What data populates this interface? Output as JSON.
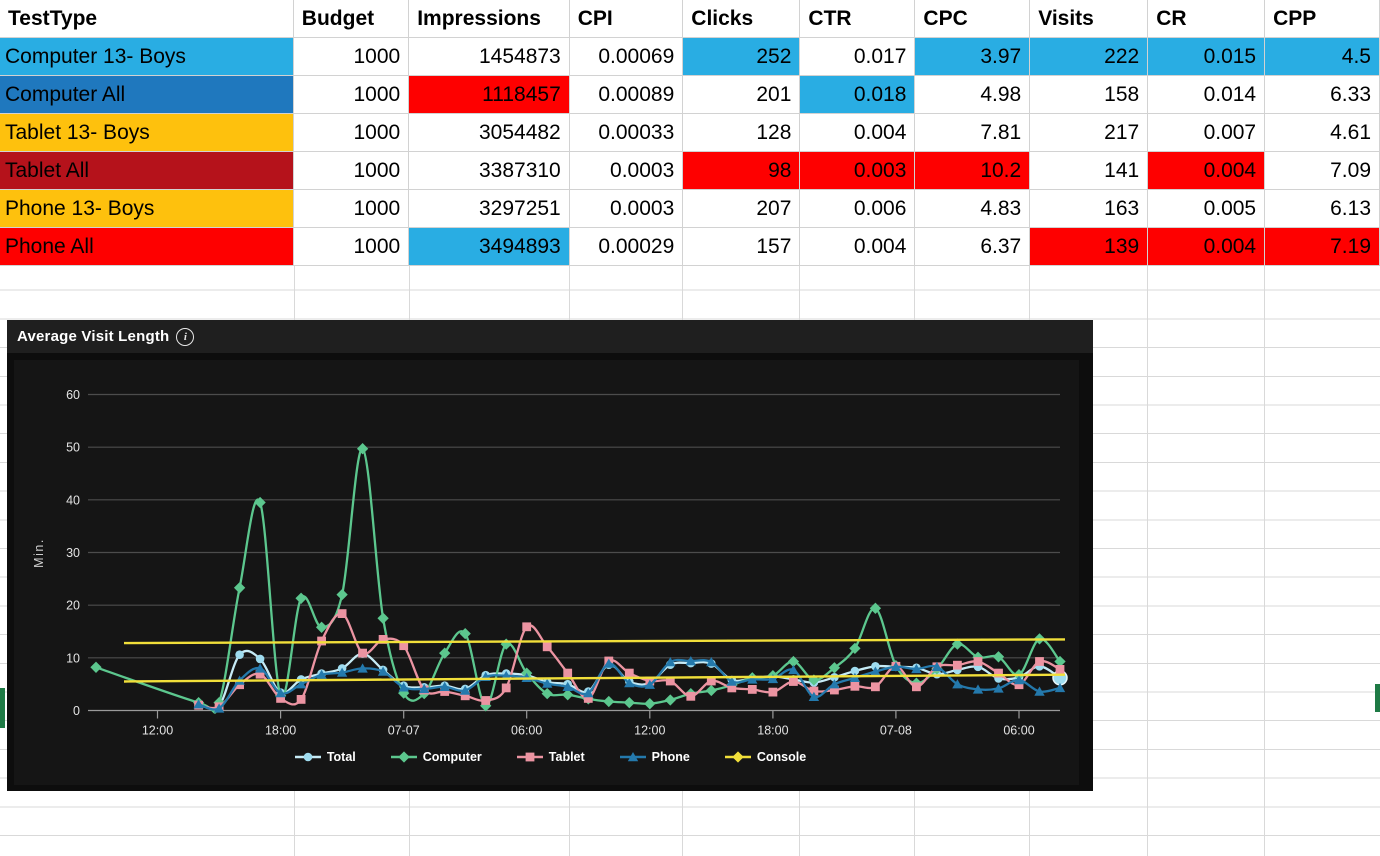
{
  "table": {
    "headers": [
      "TestType",
      "Budget",
      "Impressions",
      "CPI",
      "Clicks",
      "CTR",
      "CPC",
      "Visits",
      "CR",
      "CPP"
    ],
    "highlight_colors": {
      "cyan": "#29ADE3",
      "red": "#FE0000"
    },
    "rows": [
      {
        "label": "Computer 13- Boys",
        "label_bg": "#29ADE3",
        "cells": [
          [
            "1000",
            null
          ],
          [
            "1454873",
            null
          ],
          [
            "0.00069",
            null
          ],
          [
            "252",
            "cyan"
          ],
          [
            "0.017",
            null
          ],
          [
            "3.97",
            "cyan"
          ],
          [
            "222",
            "cyan"
          ],
          [
            "0.015",
            "cyan"
          ],
          [
            "4.5",
            "cyan"
          ]
        ]
      },
      {
        "label": "Computer All",
        "label_bg": "#1F78BE",
        "cells": [
          [
            "1000",
            null
          ],
          [
            "1118457",
            "red"
          ],
          [
            "0.00089",
            null
          ],
          [
            "201",
            null
          ],
          [
            "0.018",
            "cyan"
          ],
          [
            "4.98",
            null
          ],
          [
            "158",
            null
          ],
          [
            "0.014",
            null
          ],
          [
            "6.33",
            null
          ]
        ]
      },
      {
        "label": "Tablet 13- Boys",
        "label_bg": "#FEC10D",
        "cells": [
          [
            "1000",
            null
          ],
          [
            "3054482",
            null
          ],
          [
            "0.00033",
            null
          ],
          [
            "128",
            null
          ],
          [
            "0.004",
            null
          ],
          [
            "7.81",
            null
          ],
          [
            "217",
            null
          ],
          [
            "0.007",
            null
          ],
          [
            "4.61",
            null
          ]
        ]
      },
      {
        "label": "Tablet All",
        "label_bg": "#B5121B",
        "cells": [
          [
            "1000",
            null
          ],
          [
            "3387310",
            null
          ],
          [
            "0.0003",
            null
          ],
          [
            "98",
            "red"
          ],
          [
            "0.003",
            "red"
          ],
          [
            "10.2",
            "red"
          ],
          [
            "141",
            null
          ],
          [
            "0.004",
            "red"
          ],
          [
            "7.09",
            null
          ]
        ]
      },
      {
        "label": "Phone 13- Boys",
        "label_bg": "#FEC10D",
        "cells": [
          [
            "1000",
            null
          ],
          [
            "3297251",
            null
          ],
          [
            "0.0003",
            null
          ],
          [
            "207",
            null
          ],
          [
            "0.006",
            null
          ],
          [
            "4.83",
            null
          ],
          [
            "163",
            null
          ],
          [
            "0.005",
            null
          ],
          [
            "6.13",
            null
          ]
        ]
      },
      {
        "label": "Phone All",
        "label_bg": "#FE0000",
        "cells": [
          [
            "1000",
            null
          ],
          [
            "3494893",
            "cyan"
          ],
          [
            "0.00029",
            null
          ],
          [
            "157",
            null
          ],
          [
            "0.004",
            null
          ],
          [
            "6.37",
            null
          ],
          [
            "139",
            "red"
          ],
          [
            "0.004",
            "red"
          ],
          [
            "7.19",
            "red"
          ]
        ]
      }
    ]
  },
  "chart_data": {
    "type": "line",
    "title": "Average Visit Length",
    "ylabel": "Min.",
    "ylim": [
      0,
      60
    ],
    "yticks": [
      0,
      10,
      20,
      30,
      40,
      50,
      60
    ],
    "x_tick_labels": [
      "12:00",
      "18:00",
      "07-07",
      "06:00",
      "12:00",
      "18:00",
      "07-08",
      "06:00"
    ],
    "x_tick_indices": [
      3,
      9,
      15,
      21,
      27,
      33,
      39,
      45
    ],
    "n_points": 48,
    "x_note": "hourly samples from 07-06 09:00 through 07-08 08:00 (values estimated from plot)",
    "grid": true,
    "legend_position": "bottom",
    "series": [
      {
        "name": "Total",
        "color": "#9FDCEF",
        "line_color": "#C6EBF6",
        "marker": "circle",
        "end_dot": true,
        "values": [
          null,
          null,
          null,
          null,
          null,
          1.3,
          0.9,
          10.6,
          9.8,
          3.4,
          5.9,
          7.0,
          8.0,
          10.8,
          7.7,
          4.7,
          4.4,
          4.7,
          4.1,
          6.7,
          7.0,
          6.7,
          5.4,
          5.0,
          3.6,
          8.7,
          5.5,
          5.2,
          8.7,
          9.0,
          8.9,
          5.8,
          6.1,
          6.5,
          5.9,
          5.3,
          6.3,
          7.5,
          8.4,
          8.3,
          8.1,
          6.9,
          7.7,
          8.3,
          6.1,
          6.3,
          8.4,
          6.2
        ]
      },
      {
        "name": "Computer",
        "color": "#5CC78E",
        "line_color": "#5CC78E",
        "marker": "diamond",
        "values": [
          8.2,
          null,
          null,
          null,
          null,
          1.5,
          1.5,
          23.3,
          39.5,
          2.8,
          21.3,
          15.8,
          22.0,
          49.7,
          17.5,
          3.3,
          3.2,
          10.9,
          14.6,
          0.9,
          12.6,
          7.1,
          3.2,
          3.0,
          2.2,
          1.7,
          1.5,
          1.3,
          2.0,
          3.2,
          3.8,
          4.8,
          6.2,
          6.6,
          9.3,
          5.8,
          8.1,
          11.8,
          19.4,
          8.5,
          5.2,
          7.9,
          12.6,
          10.1,
          10.2,
          6.8,
          13.6,
          9.3
        ]
      },
      {
        "name": "Tablet",
        "color": "#EC94A2",
        "line_color": "#EC94A2",
        "marker": "square",
        "values": [
          null,
          null,
          null,
          null,
          null,
          1.0,
          0.7,
          4.9,
          6.9,
          2.3,
          2.1,
          13.2,
          18.4,
          10.9,
          13.5,
          12.3,
          3.9,
          3.6,
          2.8,
          1.9,
          4.3,
          15.9,
          12.1,
          7.1,
          2.3,
          9.4,
          7.1,
          5.6,
          5.6,
          2.7,
          5.6,
          4.3,
          4.0,
          3.5,
          5.5,
          3.7,
          3.9,
          4.6,
          4.5,
          8.4,
          4.5,
          8.3,
          8.6,
          9.3,
          7.1,
          4.9,
          9.3,
          7.8
        ]
      },
      {
        "name": "Phone",
        "color": "#2479AC",
        "line_color": "#2479AC",
        "marker": "triangle",
        "values": [
          null,
          null,
          null,
          null,
          null,
          1.2,
          0.4,
          5.7,
          8.0,
          3.3,
          5.0,
          6.8,
          7.2,
          8.0,
          7.4,
          4.4,
          4.1,
          4.5,
          3.8,
          6.4,
          6.6,
          6.2,
          5.1,
          4.5,
          3.3,
          8.9,
          5.2,
          4.9,
          9.2,
          9.4,
          9.2,
          5.5,
          5.9,
          6.0,
          7.7,
          2.6,
          5.0,
          6.2,
          7.4,
          8.3,
          7.9,
          8.3,
          5.0,
          4.0,
          4.2,
          5.8,
          3.6,
          4.3
        ]
      },
      {
        "name": "Console",
        "color": "#F1DF3A",
        "line_color": "#F1DF3A",
        "marker": "dash",
        "lines": [
          {
            "start": 12.8,
            "end": 13.5
          },
          {
            "start": 5.5,
            "end": 6.8
          }
        ]
      }
    ]
  },
  "selection_handles": {
    "color": "#1E7A45"
  }
}
